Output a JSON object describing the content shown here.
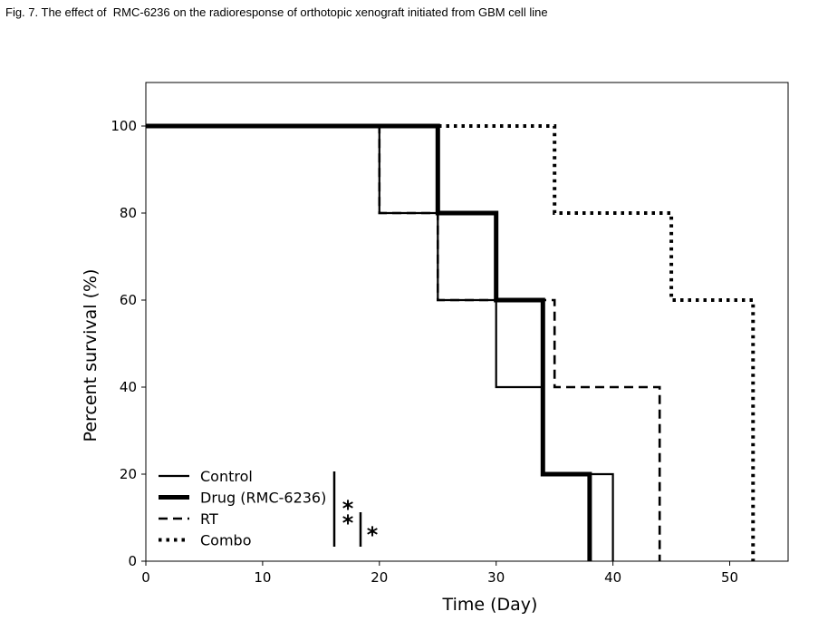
{
  "caption": "Fig. 7. The effect of  RMC-6236 on the radioresponse of orthotopic xenograft initiated from GBM cell line",
  "chart_data": {
    "type": "line",
    "subtype": "kaplan-meier-step",
    "xlabel": "Time (Day)",
    "ylabel": "Percent survival (%)",
    "xlim": [
      0,
      55
    ],
    "ylim": [
      0,
      110
    ],
    "xticks": [
      0,
      10,
      20,
      30,
      40,
      50
    ],
    "yticks": [
      0,
      20,
      40,
      60,
      80,
      100
    ],
    "grid": false,
    "legend_position": "lower-left",
    "series": [
      {
        "name": "Control",
        "style": "solid",
        "color": "#000000",
        "x": [
          0,
          20,
          20,
          25,
          25,
          30,
          30,
          34,
          34,
          40,
          40
        ],
        "y": [
          100,
          100,
          80,
          80,
          60,
          60,
          40,
          40,
          20,
          20,
          0
        ]
      },
      {
        "name": "Drug (RMC-6236)",
        "style": "thick",
        "color": "#000000",
        "x": [
          0,
          25,
          25,
          30,
          30,
          34,
          34,
          38,
          38
        ],
        "y": [
          100,
          100,
          80,
          80,
          60,
          60,
          20,
          20,
          0
        ]
      },
      {
        "name": "RT",
        "style": "dashed",
        "color": "#000000",
        "x": [
          0,
          20,
          20,
          25,
          25,
          35,
          35,
          44,
          44
        ],
        "y": [
          100,
          100,
          80,
          80,
          60,
          60,
          40,
          40,
          0
        ]
      },
      {
        "name": "Combo",
        "style": "dotted",
        "color": "#000000",
        "x": [
          0,
          35,
          35,
          45,
          45,
          52,
          52
        ],
        "y": [
          100,
          100,
          80,
          80,
          60,
          60,
          0
        ]
      }
    ],
    "annotations": [
      {
        "text": "*"
      },
      {
        "text": "*"
      },
      {
        "text": "*"
      }
    ]
  }
}
